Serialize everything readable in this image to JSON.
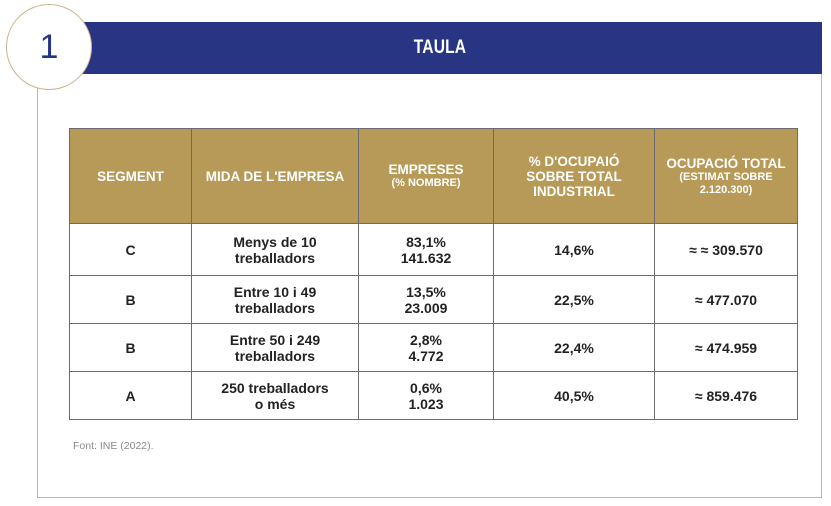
{
  "badge": {
    "number": "1"
  },
  "header": {
    "title": "TAULA"
  },
  "table": {
    "columns": [
      {
        "line1": "SEGMENT"
      },
      {
        "line1": "MIDA DE L'EMPRESA"
      },
      {
        "line1": "EMPRESES",
        "sub": "(% NOMBRE)"
      },
      {
        "line1": "% D'OCUPAIÓ",
        "line2": "SOBRE  TOTAL",
        "line3": "INDUSTRIAL"
      },
      {
        "line1": "OCUPACIÓ TOTAL",
        "sub1": "(ESTIMAT SOBRE",
        "sub2": "2.120.300)"
      }
    ],
    "rows": [
      {
        "segment": "C",
        "size1": "Menys de 10",
        "size2": "treballadors",
        "pct": "83,1%",
        "count": "141.632",
        "share": "14,6%",
        "total": "≈ ≈ 309.570"
      },
      {
        "segment": "B",
        "size1": "Entre 10 i 49",
        "size2": "treballadors",
        "pct": "13,5%",
        "count": "23.009",
        "share": "22,5%",
        "total": "≈ 477.070"
      },
      {
        "segment": "B",
        "size1": "Entre 50 i 249",
        "size2": "treballadors",
        "pct": "2,8%",
        "count": "4.772",
        "share": "22,4%",
        "total": "≈ 474.959"
      },
      {
        "segment": "A",
        "size1": "250 treballadors",
        "size2": "o més",
        "pct": "0,6%",
        "count": "1.023",
        "share": "40,5%",
        "total": "≈ 859.476"
      }
    ]
  },
  "source": "Font: INE (2022)."
}
